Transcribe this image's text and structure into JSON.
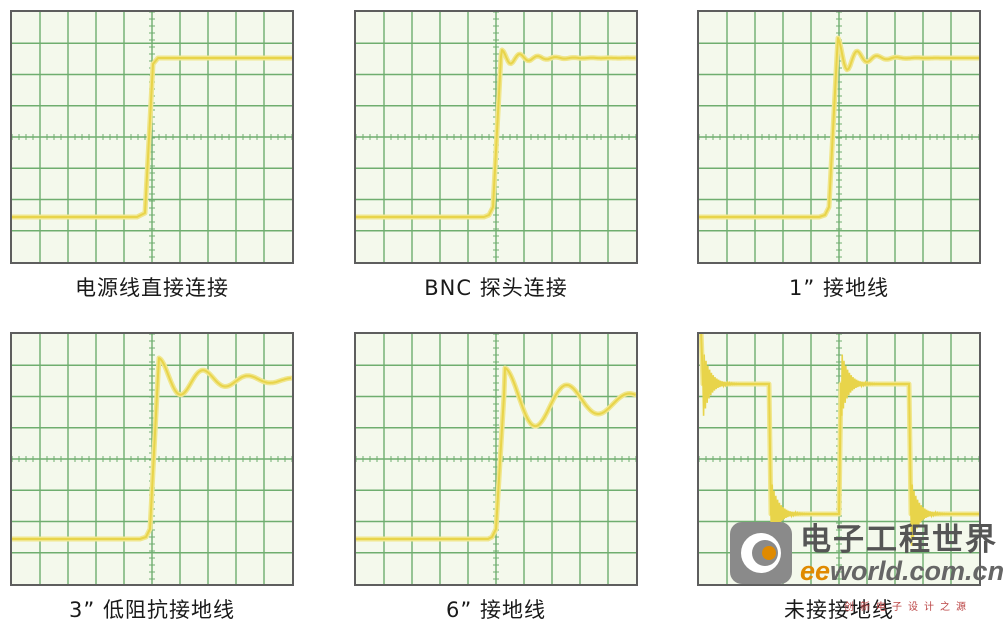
{
  "panels": [
    {
      "caption": "电源线直接连接"
    },
    {
      "caption": "BNC 探头连接"
    },
    {
      "caption": "1” 接地线"
    },
    {
      "caption": "3” 低阻抗接地线"
    },
    {
      "caption": "6” 接地线"
    },
    {
      "caption": "未接接地线"
    }
  ],
  "watermark": {
    "cn": "电子工程世界",
    "en_highlight": "ee",
    "en_rest": "world.com.cn",
    "slogan": "创新电子设计之源"
  },
  "colors": {
    "trace": "#f0e68c",
    "trace_core": "#e8d44a",
    "grid": "#6fae6f",
    "border": "#5e5e5e",
    "background": "#f4f9ec"
  }
}
